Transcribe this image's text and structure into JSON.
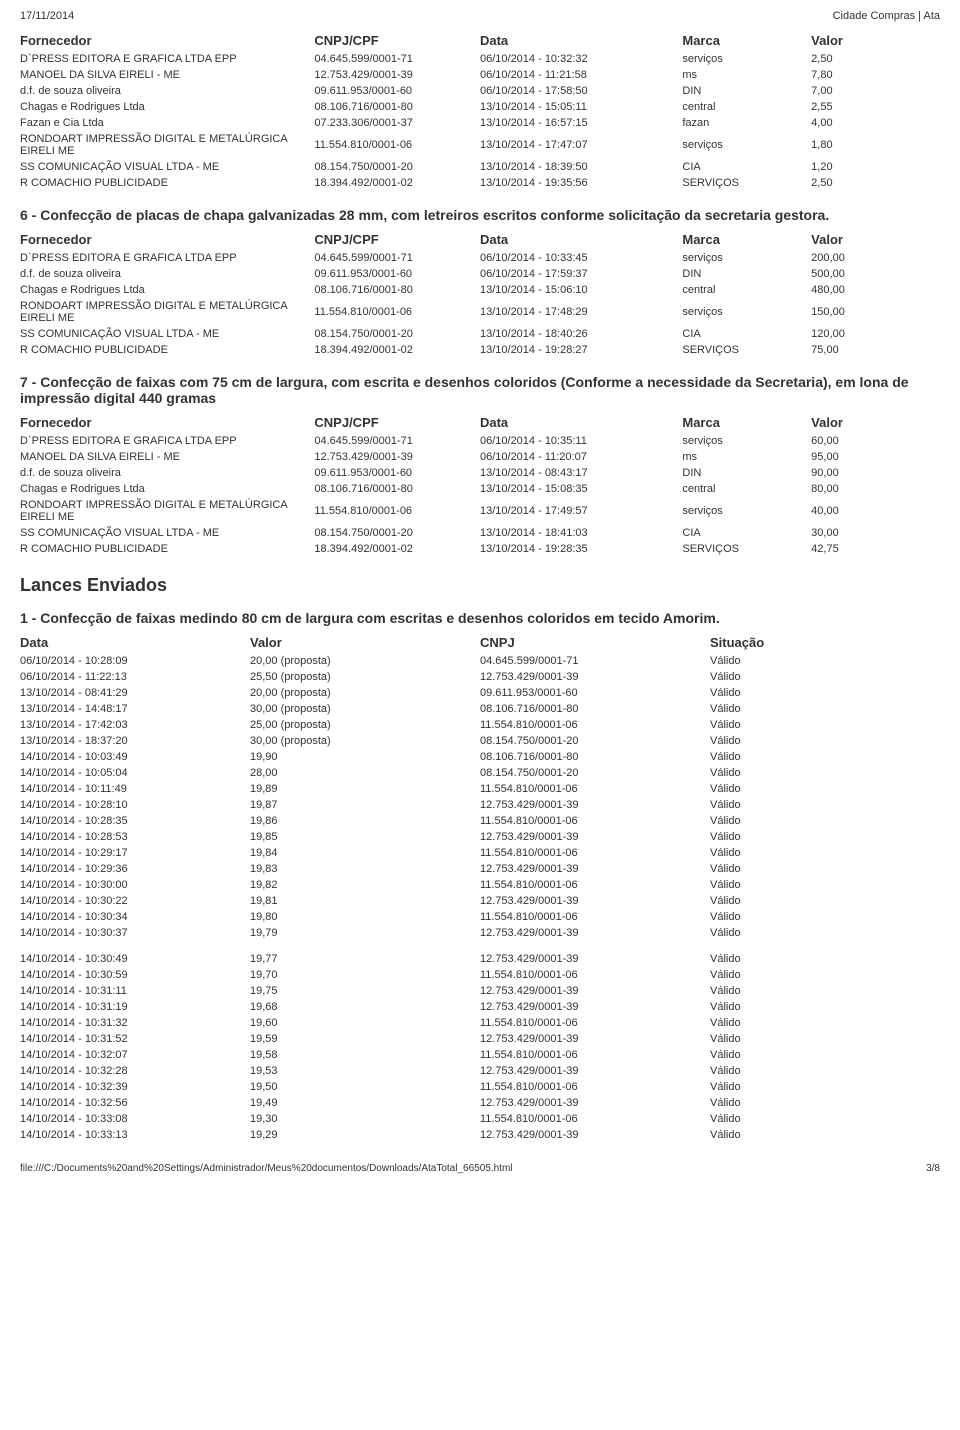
{
  "header": {
    "date": "17/11/2014",
    "title": "Cidade Compras | Ata"
  },
  "labels": {
    "fornecedor": "Fornecedor",
    "cnpj": "CNPJ/CPF",
    "data": "Data",
    "marca": "Marca",
    "valor": "Valor",
    "situacao": "Situação",
    "dataCol": "Data",
    "valorCol": "Valor",
    "cnpjCol": "CNPJ"
  },
  "sections": {
    "s1": {
      "rows": [
        {
          "f": "D`PRESS EDITORA E GRAFICA LTDA EPP",
          "c": "04.645.599/0001-71",
          "d": "06/10/2014 - 10:32:32",
          "m": "serviços",
          "v": "2,50"
        },
        {
          "f": "MANOEL DA SILVA EIRELI - ME",
          "c": "12.753.429/0001-39",
          "d": "06/10/2014 - 11:21:58",
          "m": "ms",
          "v": "7,80"
        },
        {
          "f": "d.f. de souza oliveira",
          "c": "09.611.953/0001-60",
          "d": "06/10/2014 - 17:58:50",
          "m": "DIN",
          "v": "7,00"
        },
        {
          "f": "Chagas e Rodrigues Ltda",
          "c": "08.106.716/0001-80",
          "d": "13/10/2014 - 15:05:11",
          "m": "central",
          "v": "2,55"
        },
        {
          "f": "Fazan e Cia Ltda",
          "c": "07.233.306/0001-37",
          "d": "13/10/2014 - 16:57:15",
          "m": "fazan",
          "v": "4,00"
        },
        {
          "f": "RONDOART IMPRESSÃO DIGITAL E METALÚRGICA EIRELI ME",
          "c": "11.554.810/0001-06",
          "d": "13/10/2014 - 17:47:07",
          "m": "serviços",
          "v": "1,80"
        },
        {
          "f": "SS COMUNICAÇÃO VISUAL LTDA - ME",
          "c": "08.154.750/0001-20",
          "d": "13/10/2014 - 18:39:50",
          "m": "CIA",
          "v": "1,20"
        },
        {
          "f": "R COMACHIO PUBLICIDADE",
          "c": "18.394.492/0001-02",
          "d": "13/10/2014 - 19:35:56",
          "m": "SERVIÇOS",
          "v": "2,50"
        }
      ]
    },
    "s6": {
      "title": "6 - Confecção de placas de chapa galvanizadas 28 mm, com letreiros escritos conforme solicitação da secretaria gestora.",
      "rows": [
        {
          "f": "D`PRESS EDITORA E GRAFICA LTDA EPP",
          "c": "04.645.599/0001-71",
          "d": "06/10/2014 - 10:33:45",
          "m": "serviços",
          "v": "200,00"
        },
        {
          "f": "d.f. de souza oliveira",
          "c": "09.611.953/0001-60",
          "d": "06/10/2014 - 17:59:37",
          "m": "DIN",
          "v": "500,00"
        },
        {
          "f": "Chagas e Rodrigues Ltda",
          "c": "08.106.716/0001-80",
          "d": "13/10/2014 - 15:06:10",
          "m": "central",
          "v": "480,00"
        },
        {
          "f": "RONDOART IMPRESSÃO DIGITAL E METALÚRGICA EIRELI ME",
          "c": "11.554.810/0001-06",
          "d": "13/10/2014 - 17:48:29",
          "m": "serviços",
          "v": "150,00"
        },
        {
          "f": "SS COMUNICAÇÃO VISUAL LTDA - ME",
          "c": "08.154.750/0001-20",
          "d": "13/10/2014 - 18:40:26",
          "m": "CIA",
          "v": "120,00"
        },
        {
          "f": "R COMACHIO PUBLICIDADE",
          "c": "18.394.492/0001-02",
          "d": "13/10/2014 - 19:28:27",
          "m": "SERVIÇOS",
          "v": "75,00"
        }
      ]
    },
    "s7": {
      "title": "7 - Confecção de faixas com 75 cm de largura, com escrita e desenhos coloridos (Conforme a necessidade da Secretaria), em lona de impressão digital 440 gramas",
      "rows": [
        {
          "f": "D`PRESS EDITORA E GRAFICA LTDA EPP",
          "c": "04.645.599/0001-71",
          "d": "06/10/2014 - 10:35:11",
          "m": "serviços",
          "v": "60,00"
        },
        {
          "f": "MANOEL DA SILVA EIRELI - ME",
          "c": "12.753.429/0001-39",
          "d": "06/10/2014 - 11:20:07",
          "m": "ms",
          "v": "95,00"
        },
        {
          "f": "d.f. de souza oliveira",
          "c": "09.611.953/0001-60",
          "d": "13/10/2014 - 08:43:17",
          "m": "DIN",
          "v": "90,00"
        },
        {
          "f": "Chagas e Rodrigues Ltda",
          "c": "08.106.716/0001-80",
          "d": "13/10/2014 - 15:08:35",
          "m": "central",
          "v": "80,00"
        },
        {
          "f": "RONDOART IMPRESSÃO DIGITAL E METALÚRGICA EIRELI ME",
          "c": "11.554.810/0001-06",
          "d": "13/10/2014 - 17:49:57",
          "m": "serviços",
          "v": "40,00"
        },
        {
          "f": "SS COMUNICAÇÃO VISUAL LTDA - ME",
          "c": "08.154.750/0001-20",
          "d": "13/10/2014 - 18:41:03",
          "m": "CIA",
          "v": "30,00"
        },
        {
          "f": "R COMACHIO PUBLICIDADE",
          "c": "18.394.492/0001-02",
          "d": "13/10/2014 - 19:28:35",
          "m": "SERVIÇOS",
          "v": "42,75"
        }
      ]
    }
  },
  "lances": {
    "title": "Lances Enviados",
    "sub": "1 - Confecção de faixas medindo 80 cm de largura com escritas e desenhos coloridos em tecido Amorim.",
    "block1": [
      {
        "d": "06/10/2014 - 10:28:09",
        "v": "20,00 (proposta)",
        "c": "04.645.599/0001-71",
        "s": "Válido"
      },
      {
        "d": "06/10/2014 - 11:22:13",
        "v": "25,50 (proposta)",
        "c": "12.753.429/0001-39",
        "s": "Válido"
      },
      {
        "d": "13/10/2014 - 08:41:29",
        "v": "20,00 (proposta)",
        "c": "09.611.953/0001-60",
        "s": "Válido"
      },
      {
        "d": "13/10/2014 - 14:48:17",
        "v": "30,00 (proposta)",
        "c": "08.106.716/0001-80",
        "s": "Válido"
      },
      {
        "d": "13/10/2014 - 17:42:03",
        "v": "25,00 (proposta)",
        "c": "11.554.810/0001-06",
        "s": "Válido"
      },
      {
        "d": "13/10/2014 - 18:37:20",
        "v": "30,00 (proposta)",
        "c": "08.154.750/0001-20",
        "s": "Válido"
      },
      {
        "d": "14/10/2014 - 10:03:49",
        "v": "19,90",
        "c": "08.106.716/0001-80",
        "s": "Válido"
      },
      {
        "d": "14/10/2014 - 10:05:04",
        "v": "28,00",
        "c": "08.154.750/0001-20",
        "s": "Válido"
      },
      {
        "d": "14/10/2014 - 10:11:49",
        "v": "19,89",
        "c": "11.554.810/0001-06",
        "s": "Válido"
      },
      {
        "d": "14/10/2014 - 10:28:10",
        "v": "19,87",
        "c": "12.753.429/0001-39",
        "s": "Válido"
      },
      {
        "d": "14/10/2014 - 10:28:35",
        "v": "19,86",
        "c": "11.554.810/0001-06",
        "s": "Válido"
      },
      {
        "d": "14/10/2014 - 10:28:53",
        "v": "19,85",
        "c": "12.753.429/0001-39",
        "s": "Válido"
      },
      {
        "d": "14/10/2014 - 10:29:17",
        "v": "19,84",
        "c": "11.554.810/0001-06",
        "s": "Válido"
      },
      {
        "d": "14/10/2014 - 10:29:36",
        "v": "19,83",
        "c": "12.753.429/0001-39",
        "s": "Válido"
      },
      {
        "d": "14/10/2014 - 10:30:00",
        "v": "19,82",
        "c": "11.554.810/0001-06",
        "s": "Válido"
      },
      {
        "d": "14/10/2014 - 10:30:22",
        "v": "19,81",
        "c": "12.753.429/0001-39",
        "s": "Válido"
      },
      {
        "d": "14/10/2014 - 10:30:34",
        "v": "19,80",
        "c": "11.554.810/0001-06",
        "s": "Válido"
      },
      {
        "d": "14/10/2014 - 10:30:37",
        "v": "19,79",
        "c": "12.753.429/0001-39",
        "s": "Válido"
      }
    ],
    "block2": [
      {
        "d": "14/10/2014 - 10:30:49",
        "v": "19,77",
        "c": "12.753.429/0001-39",
        "s": "Válido"
      },
      {
        "d": "14/10/2014 - 10:30:59",
        "v": "19,70",
        "c": "11.554.810/0001-06",
        "s": "Válido"
      },
      {
        "d": "14/10/2014 - 10:31:11",
        "v": "19,75",
        "c": "12.753.429/0001-39",
        "s": "Válido"
      },
      {
        "d": "14/10/2014 - 10:31:19",
        "v": "19,68",
        "c": "12.753.429/0001-39",
        "s": "Válido"
      },
      {
        "d": "14/10/2014 - 10:31:32",
        "v": "19,60",
        "c": "11.554.810/0001-06",
        "s": "Válido"
      },
      {
        "d": "14/10/2014 - 10:31:52",
        "v": "19,59",
        "c": "12.753.429/0001-39",
        "s": "Válido"
      },
      {
        "d": "14/10/2014 - 10:32:07",
        "v": "19,58",
        "c": "11.554.810/0001-06",
        "s": "Válido"
      },
      {
        "d": "14/10/2014 - 10:32:28",
        "v": "19,53",
        "c": "12.753.429/0001-39",
        "s": "Válido"
      },
      {
        "d": "14/10/2014 - 10:32:39",
        "v": "19,50",
        "c": "11.554.810/0001-06",
        "s": "Válido"
      },
      {
        "d": "14/10/2014 - 10:32:56",
        "v": "19,49",
        "c": "12.753.429/0001-39",
        "s": "Válido"
      },
      {
        "d": "14/10/2014 - 10:33:08",
        "v": "19,30",
        "c": "11.554.810/0001-06",
        "s": "Válido"
      },
      {
        "d": "14/10/2014 - 10:33:13",
        "v": "19,29",
        "c": "12.753.429/0001-39",
        "s": "Válido"
      }
    ]
  },
  "footer": {
    "path": "file:///C:/Documents%20and%20Settings/Administrador/Meus%20documentos/Downloads/AtaTotal_66505.html",
    "page": "3/8"
  }
}
